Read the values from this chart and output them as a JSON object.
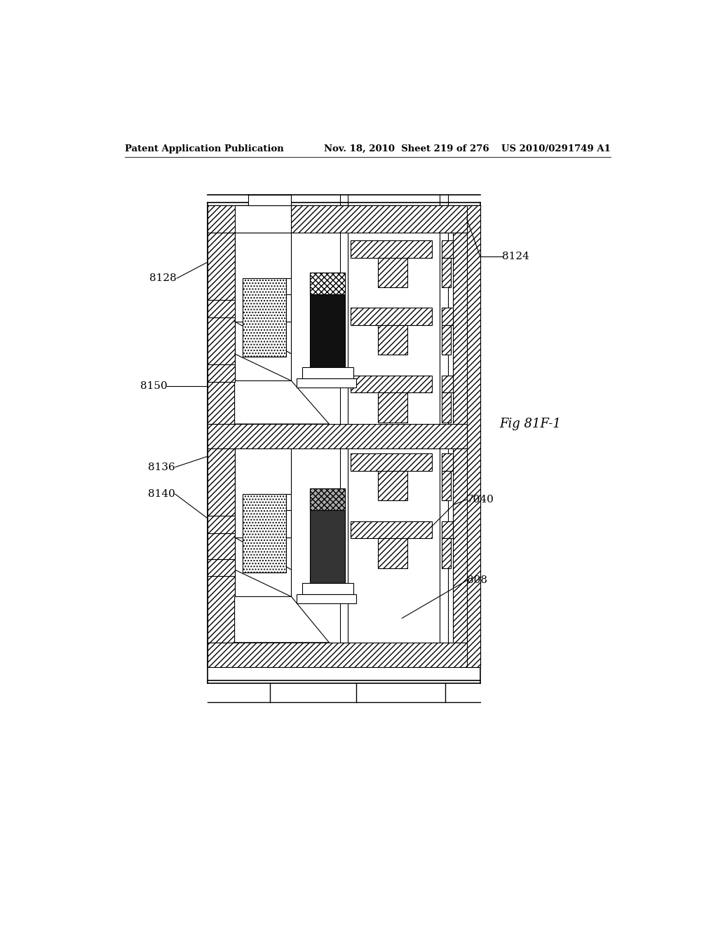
{
  "title_left": "Patent Application Publication",
  "title_mid": "Nov. 18, 2010  Sheet 219 of 276",
  "title_right": "US 2010/0291749 A1",
  "fig_label": "Fig 81F-1",
  "background": "#ffffff"
}
